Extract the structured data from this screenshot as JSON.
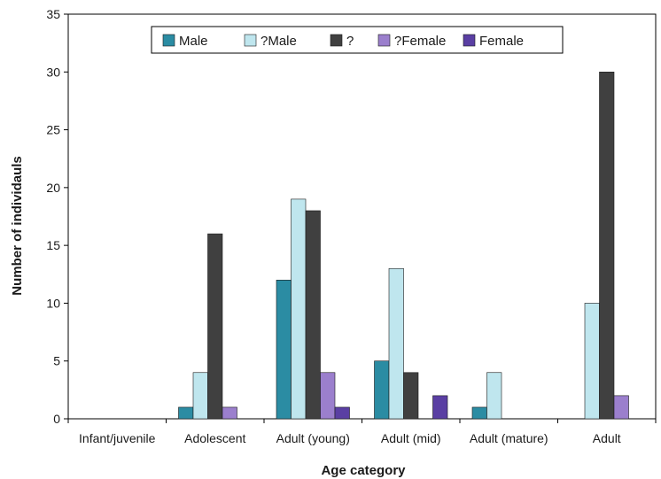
{
  "chart_data": {
    "type": "bar",
    "title": "",
    "xlabel": "Age category",
    "ylabel": "Number of individauls",
    "ylim": [
      0,
      35
    ],
    "yticks": [
      0,
      5,
      10,
      15,
      20,
      25,
      30,
      35
    ],
    "grid": false,
    "legend_position": "top-center",
    "categories": [
      "Infant/juvenile",
      "Adolescent",
      "Adult (young)",
      "Adult (mid)",
      "Adult (mature)",
      "Adult"
    ],
    "series": [
      {
        "name": "Male",
        "color": "#2b8ca3",
        "values": [
          0,
          1,
          12,
          5,
          1,
          0
        ]
      },
      {
        "name": "?Male",
        "color": "#bfe6ee",
        "values": [
          0,
          4,
          19,
          13,
          4,
          10
        ]
      },
      {
        "name": "?",
        "color": "#404040",
        "values": [
          0,
          16,
          18,
          4,
          0,
          30
        ]
      },
      {
        "name": "?Female",
        "color": "#9b7fcd",
        "values": [
          0,
          1,
          4,
          0,
          0,
          2
        ]
      },
      {
        "name": "Female",
        "color": "#5a3fa3",
        "values": [
          0,
          0,
          1,
          2,
          0,
          0
        ]
      }
    ]
  }
}
